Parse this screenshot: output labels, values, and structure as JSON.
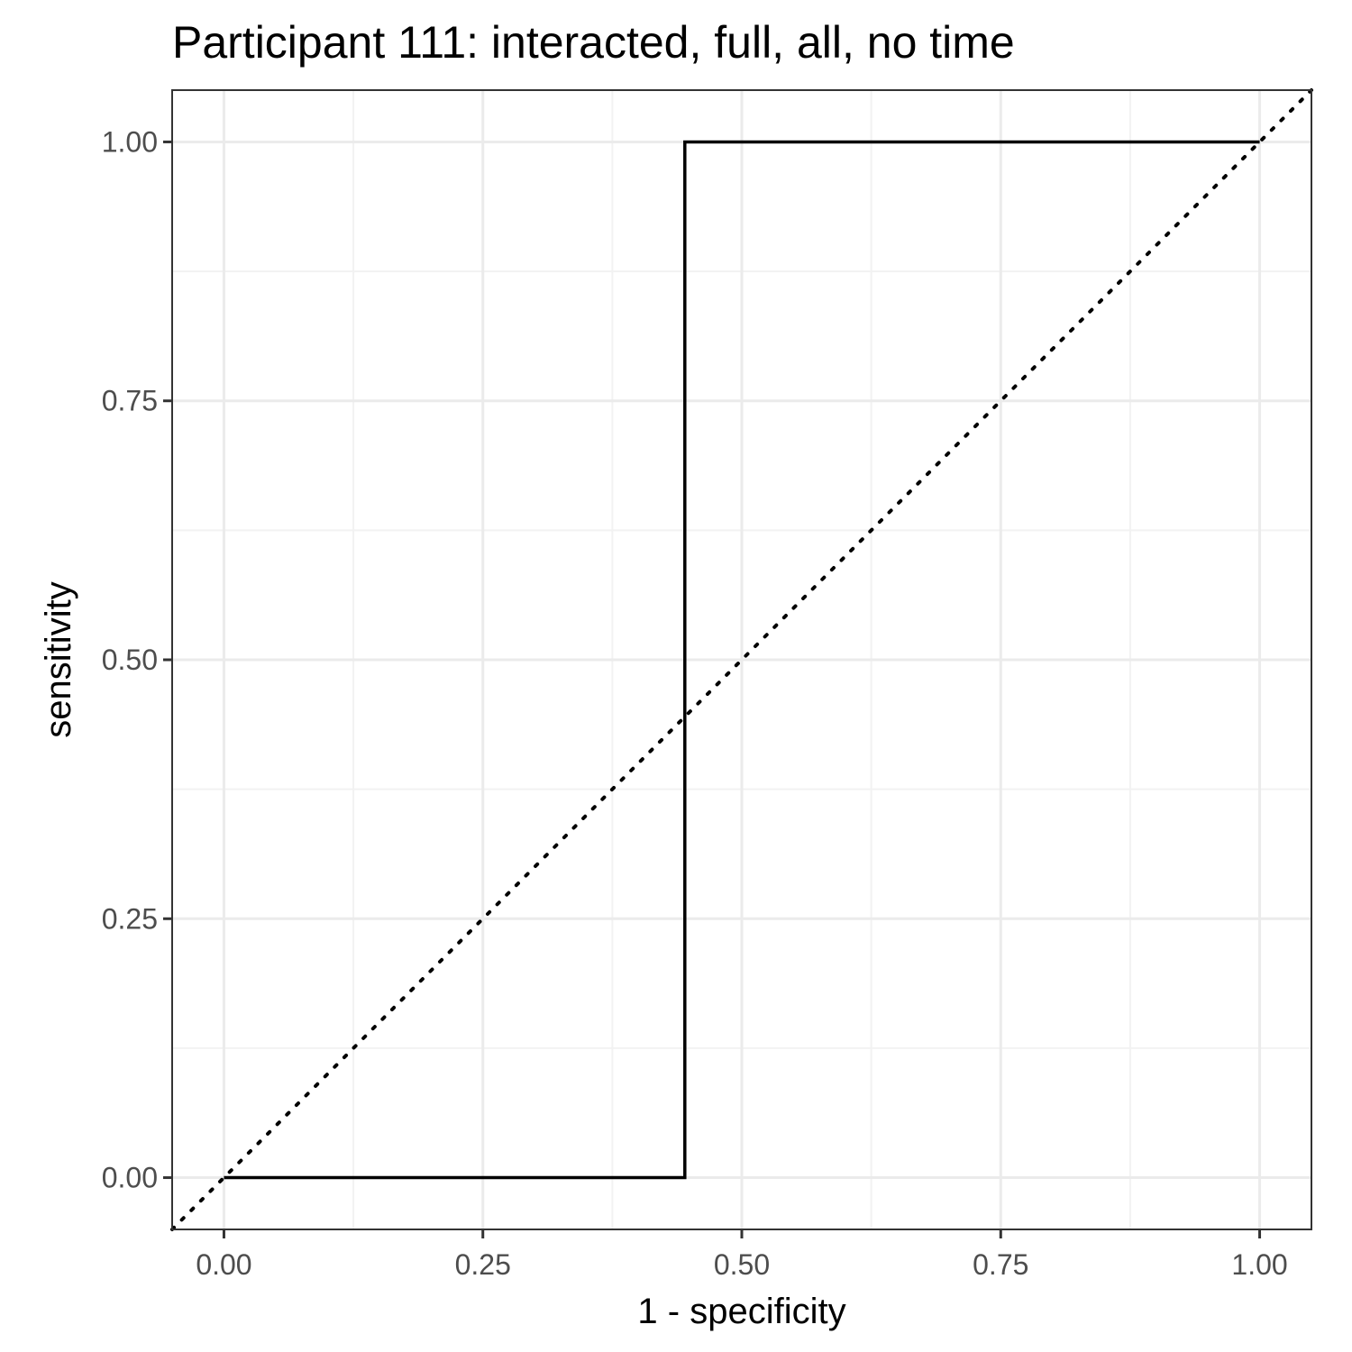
{
  "chart_data": {
    "type": "line",
    "title": "Participant 111: interacted, full, all, no time",
    "xlabel": "1 - specificity",
    "ylabel": "sensitivity",
    "xlim": [
      -0.05,
      1.05
    ],
    "ylim": [
      -0.05,
      1.05
    ],
    "x_ticks": [
      0,
      0.25,
      0.5,
      0.75,
      1
    ],
    "x_tick_labels": [
      "0.00",
      "0.25",
      "0.50",
      "0.75",
      "1.00"
    ],
    "y_ticks": [
      0,
      0.25,
      0.5,
      0.75,
      1
    ],
    "y_tick_labels": [
      "0.00",
      "0.25",
      "0.50",
      "0.75",
      "1.00"
    ],
    "grid": true,
    "legend": "none",
    "series": [
      {
        "style": "solid-step",
        "color": "#000000",
        "x": [
          0,
          0.445,
          0.445,
          1
        ],
        "y": [
          0,
          0,
          1,
          1
        ]
      },
      {
        "style": "dotted-reference",
        "color": "#000000",
        "x": [
          -0.05,
          1.05
        ],
        "y": [
          -0.05,
          1.05
        ]
      }
    ],
    "colors": {
      "background": "#ffffff",
      "grid_major": "#ebebeb",
      "grid_minor": "#f2f2f2",
      "panel_border": "#333333",
      "tick_text": "#4d4d4d"
    }
  }
}
